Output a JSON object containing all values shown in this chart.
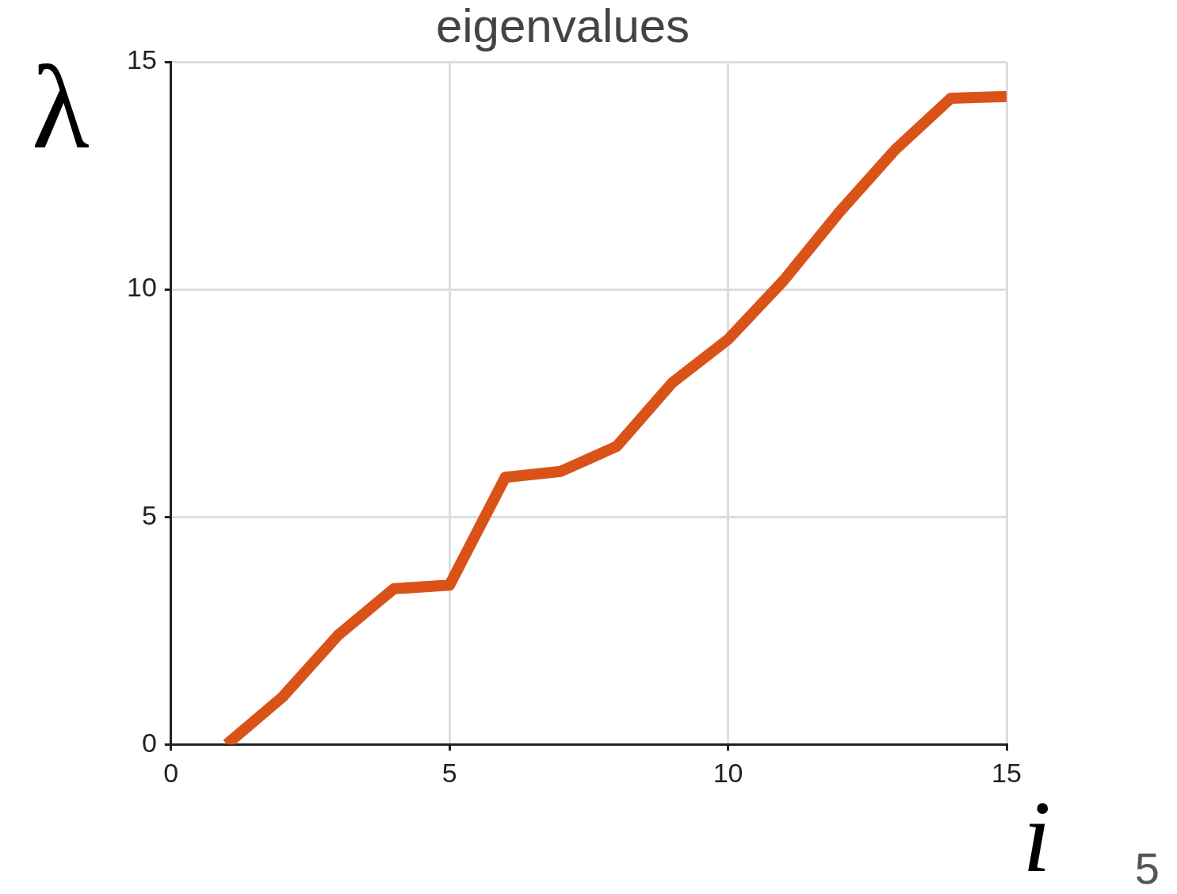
{
  "chart_data": {
    "type": "line",
    "title": "eigenvalues",
    "xlabel": "i",
    "ylabel": "λ",
    "annotations": [
      "5"
    ],
    "x": [
      1,
      2,
      3,
      4,
      5,
      6,
      7,
      8,
      9,
      10,
      11,
      12,
      13,
      14,
      15
    ],
    "series": [
      {
        "color": "#d95319",
        "values": [
          0,
          1.04,
          2.4,
          3.42,
          3.5,
          5.87,
          6.0,
          6.55,
          7.95,
          8.9,
          10.2,
          11.7,
          13.07,
          14.2,
          14.24
        ]
      }
    ],
    "xlim": [
      0,
      15
    ],
    "xticks": [
      0,
      5,
      10,
      15
    ],
    "ylim": [
      0,
      15
    ],
    "yticks": [
      0,
      5,
      10,
      15
    ],
    "grid": true,
    "legend": false,
    "marker": "none",
    "line_style": "solid"
  }
}
